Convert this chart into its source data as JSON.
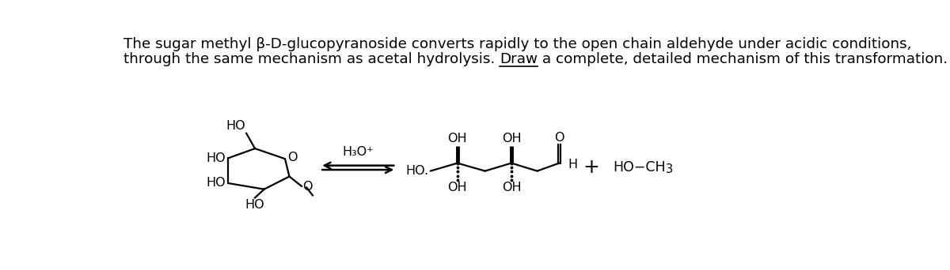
{
  "title_line1": "The sugar methyl β-D-glucopyranoside converts rapidly to the open chain aldehyde under acidic conditions,",
  "title_line2_pre": "through the same mechanism as acetal hydrolysis. ",
  "title_line2_ul": "Draw",
  "title_line2_post": " a complete, detailed mechanism of this transformation.",
  "bg_color": "#ffffff",
  "text_color": "#000000",
  "fig_width": 12.0,
  "fig_height": 3.42,
  "dpi": 100
}
